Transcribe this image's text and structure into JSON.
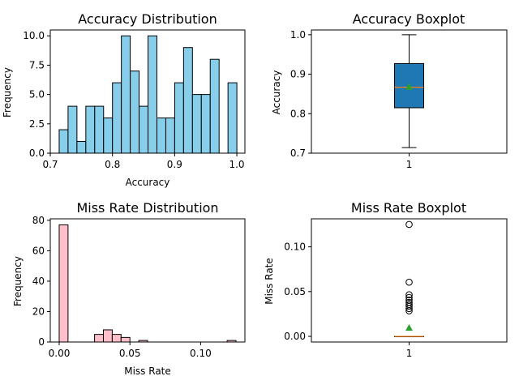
{
  "chart_data": [
    {
      "type": "bar",
      "title": "Accuracy Distribution",
      "xlabel": "Accuracy",
      "ylabel": "Frequency",
      "xlim": [
        0.7,
        1.013
      ],
      "ylim": [
        0,
        10.5
      ],
      "xticks": [
        "0.7",
        "0.8",
        "0.9",
        "1.0"
      ],
      "xtick_values": [
        0.7,
        0.8,
        0.9,
        1.0
      ],
      "yticks": [
        "0.0",
        "2.5",
        "5.0",
        "7.5",
        "10.0"
      ],
      "ytick_values": [
        0,
        2.5,
        5,
        7.5,
        10
      ],
      "bin_start": 0.7143,
      "bin_width": 0.01429,
      "values": [
        2,
        4,
        1,
        4,
        4,
        3,
        6,
        10,
        7,
        4,
        10,
        3,
        3,
        6,
        9,
        5,
        5,
        8,
        0,
        6
      ],
      "color": "#87ceeb"
    },
    {
      "type": "boxplot",
      "title": "Accuracy Boxplot",
      "ylabel": "Accuracy",
      "ylim": [
        0.7,
        1.012
      ],
      "yticks": [
        "0.7",
        "0.8",
        "0.9",
        "1.0"
      ],
      "ytick_values": [
        0.7,
        0.8,
        0.9,
        1.0
      ],
      "xticks": [
        "1"
      ],
      "whisker_low": 0.714,
      "q1": 0.815,
      "median": 0.867,
      "mean": 0.868,
      "q3": 0.927,
      "whisker_high": 1.0,
      "outliers": [],
      "color": "#1f77b4"
    },
    {
      "type": "bar",
      "title": "Miss Rate Distribution",
      "xlabel": "Miss Rate",
      "ylabel": "Frequency",
      "xlim": [
        -0.0063,
        0.1313
      ],
      "ylim": [
        0,
        81
      ],
      "xticks": [
        "0.00",
        "0.05",
        "0.10"
      ],
      "xtick_values": [
        0,
        0.05,
        0.1
      ],
      "yticks": [
        "0",
        "20",
        "40",
        "60",
        "80"
      ],
      "ytick_values": [
        0,
        20,
        40,
        60,
        80
      ],
      "bin_start": 0,
      "bin_width": 0.00625,
      "values": [
        77,
        0,
        0,
        0,
        5,
        8,
        5,
        3,
        0,
        1,
        0,
        0,
        0,
        0,
        0,
        0,
        0,
        0,
        0,
        1
      ],
      "color": "#ffc0cb"
    },
    {
      "type": "boxplot",
      "title": "Miss Rate Boxplot",
      "ylabel": "Miss Rate",
      "ylim": [
        -0.0063,
        0.1313
      ],
      "yticks": [
        "0.00",
        "0.05",
        "0.10"
      ],
      "ytick_values": [
        0,
        0.05,
        0.1
      ],
      "xticks": [
        "1"
      ],
      "whisker_low": 0,
      "q1": 0,
      "median": 0,
      "mean": 0.0095,
      "q3": 0,
      "whisker_high": 0,
      "outliers": [
        0.125,
        0.0605,
        0.0465,
        0.0435,
        0.0405,
        0.038,
        0.0355,
        0.0335,
        0.031,
        0.0285
      ],
      "color": "#1f77b4"
    }
  ]
}
